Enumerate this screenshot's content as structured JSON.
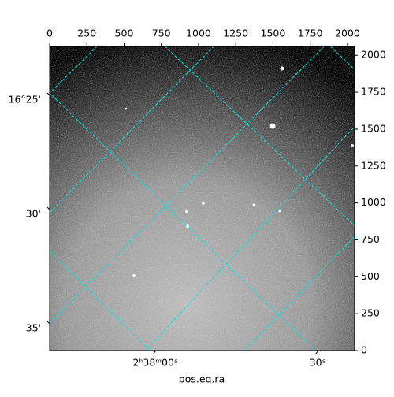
{
  "chart_data": {
    "type": "image",
    "xlabel": "pos.eq.ra",
    "xlim": [
      0,
      2048
    ],
    "xticks": [
      0,
      250,
      500,
      750,
      1000,
      1250,
      1500,
      1750,
      2000
    ],
    "ylim": [
      0,
      2060
    ],
    "yticks": [
      0,
      250,
      500,
      750,
      1000,
      1250,
      1500,
      1750,
      2000
    ],
    "ra_tick_labels": [
      "2ʰ38ᵐ00ˢ",
      "30ˢ"
    ],
    "dec_tick_labels": [
      "16°25'",
      "30'",
      "35'"
    ],
    "grid_color": "#00e5e5"
  }
}
